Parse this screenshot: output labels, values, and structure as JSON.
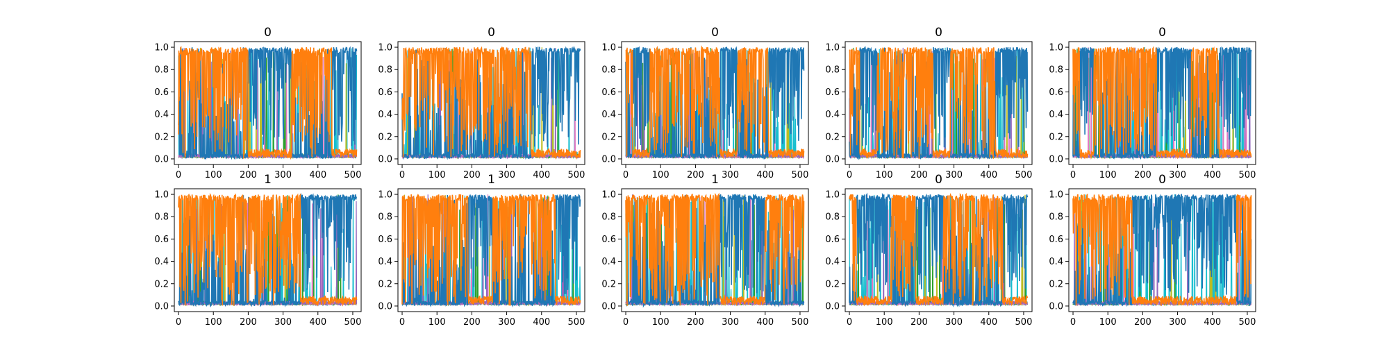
{
  "chart_data": {
    "type": "line",
    "rows": 2,
    "cols": 5,
    "xlim": [
      -12,
      524
    ],
    "ylim": [
      -0.05,
      1.05
    ],
    "xticks": [
      0,
      100,
      200,
      300,
      400,
      500
    ],
    "yticks": [
      0.0,
      0.2,
      0.4,
      0.6,
      0.8,
      1.0
    ],
    "xtick_labels": [
      "0",
      "100",
      "200",
      "300",
      "400",
      "500"
    ],
    "ytick_labels": [
      "0.0",
      "0.2",
      "0.4",
      "0.6",
      "0.8",
      "1.0"
    ],
    "n_points": 512,
    "colors": {
      "blue": "#1f77b4",
      "orange": "#ff7f0e",
      "cyan": "#17becf",
      "olive": "#bcbd22",
      "green": "#2ca02c",
      "pink": "#e377c2",
      "purple": "#9467bd"
    },
    "panels": [
      {
        "title": "0",
        "orange_segments": [
          [
            0,
            200
          ],
          [
            325,
            440
          ]
        ]
      },
      {
        "title": "0",
        "orange_segments": [
          [
            0,
            370
          ]
        ]
      },
      {
        "title": "0",
        "orange_segments": [
          [
            0,
            20
          ],
          [
            70,
            270
          ],
          [
            320,
            410
          ]
        ]
      },
      {
        "title": "0",
        "orange_segments": [
          [
            0,
            30
          ],
          [
            80,
            240
          ],
          [
            290,
            420
          ]
        ]
      },
      {
        "title": "0",
        "orange_segments": [
          [
            0,
            20
          ],
          [
            60,
            240
          ],
          [
            340,
            420
          ]
        ]
      },
      {
        "title": "1",
        "orange_segments": [
          [
            0,
            350
          ]
        ]
      },
      {
        "title": "1",
        "orange_segments": [
          [
            0,
            190
          ],
          [
            260,
            440
          ]
        ]
      },
      {
        "title": "1",
        "orange_segments": [
          [
            0,
            270
          ],
          [
            400,
            512
          ]
        ]
      },
      {
        "title": "0",
        "orange_segments": [
          [
            0,
            20
          ],
          [
            120,
            190
          ],
          [
            270,
            440
          ]
        ]
      },
      {
        "title": "0",
        "orange_segments": [
          [
            0,
            170
          ],
          [
            470,
            512
          ]
        ]
      }
    ]
  }
}
